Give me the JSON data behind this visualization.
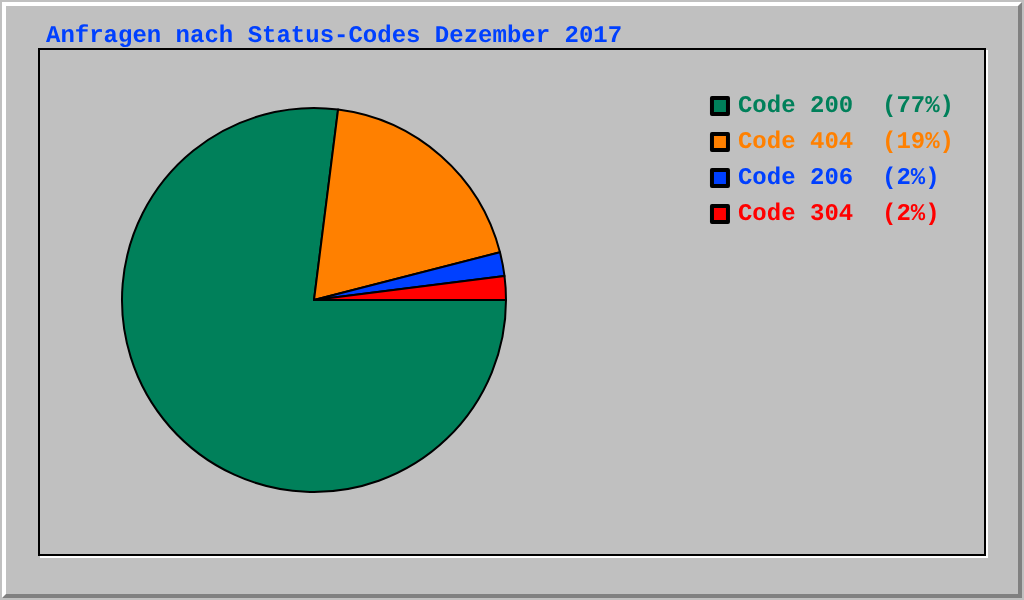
{
  "chart_data": {
    "type": "pie",
    "title": "Anfragen nach Status-Codes Dezember 2017",
    "categories": [
      "Code 200",
      "Code 404",
      "Code 206",
      "Code 304"
    ],
    "values": [
      77,
      19,
      2,
      2
    ],
    "value_labels": [
      "(77%)",
      "(19%)",
      "(2%)",
      "(2%)"
    ],
    "colors": [
      "#00805a",
      "#ff8000",
      "#0040ff",
      "#ff0000"
    ],
    "legend": "top right"
  }
}
